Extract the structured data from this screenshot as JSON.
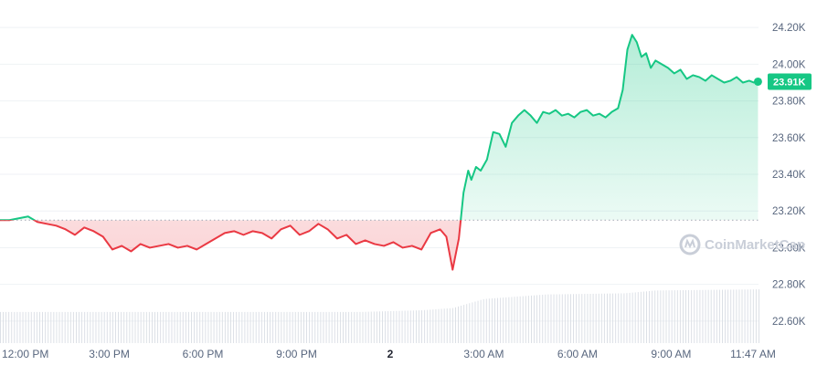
{
  "chart_data": {
    "type": "area",
    "x_unit": "hours",
    "x_range": [
      -0.5,
      23.8
    ],
    "ylim": [
      22.48,
      24.35
    ],
    "y_ticks": [
      22.6,
      22.8,
      23.0,
      23.2,
      23.4,
      23.6,
      23.8,
      24.0,
      24.2
    ],
    "y_tick_labels": [
      "22.60K",
      "22.80K",
      "23.00K",
      "23.20K",
      "23.40K",
      "23.60K",
      "23.80K",
      "24.00K",
      "24.20K"
    ],
    "x_tick_labels": [
      {
        "label": "12:00 PM",
        "x": 0,
        "bold": false
      },
      {
        "label": "3:00 PM",
        "x": 3,
        "bold": false
      },
      {
        "label": "6:00 PM",
        "x": 6,
        "bold": false
      },
      {
        "label": "9:00 PM",
        "x": 9,
        "bold": false
      },
      {
        "label": "2",
        "x": 12,
        "bold": true
      },
      {
        "label": "3:00 AM",
        "x": 15,
        "bold": false
      },
      {
        "label": "6:00 AM",
        "x": 18,
        "bold": false
      },
      {
        "label": "9:00 AM",
        "x": 21,
        "bold": false
      },
      {
        "label": "11:47 AM",
        "x": 23.783,
        "bold": false
      }
    ],
    "baseline": 23.15,
    "current_price_label": "23.91K",
    "current_price": 23.905,
    "colors": {
      "up": "#16c784",
      "down": "#ea3943",
      "baseline": "#a0a7b4",
      "grid": "#eff2f5",
      "volume": "#d9dde4"
    },
    "series": [
      {
        "x": [
          -0.5,
          -0.2,
          0.1,
          0.4,
          0.7,
          1.0,
          1.3,
          1.6,
          1.9,
          2.2,
          2.5,
          2.8,
          3.1,
          3.4,
          3.7,
          4.0,
          4.3,
          4.6,
          4.9,
          5.2,
          5.5,
          5.8,
          6.1,
          6.4,
          6.7,
          7.0,
          7.3,
          7.6,
          7.9,
          8.2,
          8.5,
          8.8,
          9.1,
          9.4,
          9.7,
          10.0,
          10.3,
          10.6,
          10.9,
          11.2,
          11.5,
          11.8,
          12.1,
          12.4,
          12.7,
          13.0,
          13.3,
          13.6,
          13.8,
          14.0,
          14.2,
          14.35,
          14.5,
          14.6,
          14.75,
          14.9,
          15.1,
          15.3,
          15.5,
          15.7,
          15.9,
          16.1,
          16.3,
          16.5,
          16.7,
          16.9,
          17.1,
          17.3,
          17.5,
          17.7,
          17.9,
          18.1,
          18.3,
          18.5,
          18.7,
          18.9,
          19.1,
          19.3,
          19.45,
          19.6,
          19.75,
          19.9,
          20.05,
          20.2,
          20.35,
          20.5,
          20.7,
          20.9,
          21.1,
          21.3,
          21.5,
          21.7,
          21.9,
          22.1,
          22.3,
          22.5,
          22.7,
          22.9,
          23.1,
          23.3,
          23.5,
          23.65,
          23.783
        ],
        "y": [
          23.15,
          23.15,
          23.16,
          23.17,
          23.14,
          23.13,
          23.12,
          23.1,
          23.07,
          23.11,
          23.09,
          23.06,
          22.99,
          23.01,
          22.98,
          23.02,
          23.0,
          23.01,
          23.02,
          23.0,
          23.01,
          22.99,
          23.02,
          23.05,
          23.08,
          23.09,
          23.07,
          23.09,
          23.08,
          23.05,
          23.1,
          23.12,
          23.07,
          23.09,
          23.13,
          23.1,
          23.05,
          23.07,
          23.02,
          23.04,
          23.02,
          23.01,
          23.03,
          23.0,
          23.01,
          22.99,
          23.08,
          23.1,
          23.06,
          22.88,
          23.05,
          23.3,
          23.42,
          23.37,
          23.44,
          23.42,
          23.48,
          23.63,
          23.62,
          23.55,
          23.68,
          23.72,
          23.75,
          23.72,
          23.68,
          23.74,
          23.73,
          23.75,
          23.72,
          23.73,
          23.71,
          23.74,
          23.75,
          23.72,
          23.73,
          23.71,
          23.74,
          23.76,
          23.86,
          24.08,
          24.16,
          24.12,
          24.04,
          24.06,
          23.98,
          24.02,
          24.0,
          23.98,
          23.95,
          23.97,
          23.92,
          23.94,
          23.93,
          23.91,
          23.94,
          23.92,
          23.9,
          23.91,
          23.93,
          23.9,
          23.91,
          23.9,
          23.905
        ]
      }
    ],
    "volume": {
      "x": [
        -0.5,
        11.0,
        13.0,
        14.0,
        15.0,
        17.0,
        19.5,
        20.5,
        23.783
      ],
      "relative": [
        0.55,
        0.55,
        0.58,
        0.62,
        0.78,
        0.86,
        0.88,
        0.93,
        0.95
      ]
    }
  },
  "watermark": {
    "text": "CoinMarketCap",
    "icon": "coinmarketcap-logo-icon"
  }
}
